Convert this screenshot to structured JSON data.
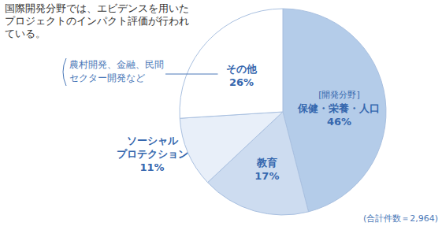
{
  "chart_data": {
    "type": "pie",
    "title": "国際開発分野では、エビデンスを用いた\nプロジェクトのインパクト評価が行われ\nている。",
    "categories": [
      "保健・栄養・人口",
      "教育",
      "ソーシャル\nプロテクション",
      "その他"
    ],
    "values": [
      46,
      17,
      11,
      26
    ],
    "value_labels": [
      "46%",
      "17%",
      "11%",
      "26%"
    ],
    "colors": [
      "#b4cce9",
      "#cddcf0",
      "#e8eff9",
      "#ffffff"
    ],
    "data_labels": true,
    "annotations": [
      "[開発分野]",
      "農村開発、金融、民間\nセクター開発など",
      "(合計件数＝2,964)"
    ]
  }
}
